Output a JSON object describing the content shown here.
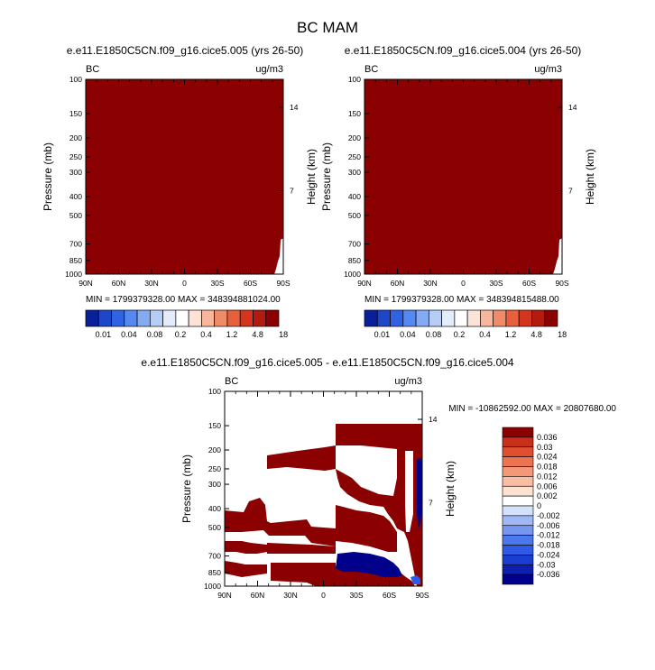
{
  "title": "BC MAM",
  "colors": {
    "fill_max": "#8b0000",
    "fill_min": "#00008b",
    "frame": "#000000",
    "background": "#ffffff"
  },
  "palette_top": [
    "#0a1f9a",
    "#1d46c8",
    "#2f63e4",
    "#5588f0",
    "#84aaf2",
    "#b6cdf6",
    "#e2ecfb",
    "#ffffff",
    "#fde3d6",
    "#f8b79c",
    "#f08b6a",
    "#e6603e",
    "#d5351c",
    "#b11b10",
    "#8b0000"
  ],
  "palette_diff": [
    "#00008b",
    "#0b1fb0",
    "#1a3fd0",
    "#2e5ae6",
    "#4c78ee",
    "#7597f1",
    "#a0b8f4",
    "#d3e2f8",
    "#ffffff",
    "#fde2d2",
    "#f9bda3",
    "#f4987a",
    "#ed7452",
    "#e04f2f",
    "#c8301a",
    "#8b0000"
  ],
  "panels": [
    {
      "title": "e.e11.E1850C5CN.f09_g16.cice5.005 (yrs 26-50)",
      "left_label": "BC",
      "right_label": "ug/m3",
      "ylabel": "Pressure (mb)",
      "y2label": "Height (km)",
      "minmax": "MIN = 1799379328.00   MAX = 348394881024.00",
      "colorbar_labels": [
        "0.01",
        "0.04",
        "0.08",
        "0.2",
        "0.4",
        "1.2",
        "4.8",
        "18"
      ]
    },
    {
      "title": "e.e11.E1850C5CN.f09_g16.cice5.004 (yrs 26-50)",
      "left_label": "BC",
      "right_label": "ug/m3",
      "ylabel": "Pressure (mb)",
      "y2label": "Height (km)",
      "minmax": "MIN = 1799379328.00   MAX = 348394815488.00",
      "colorbar_labels": [
        "0.01",
        "0.04",
        "0.08",
        "0.2",
        "0.4",
        "1.2",
        "4.8",
        "18"
      ]
    },
    {
      "title": "e.e11.E1850C5CN.f09_g16.cice5.005 - e.e11.E1850C5CN.f09_g16.cice5.004",
      "left_label": "BC",
      "right_label": "ug/m3",
      "ylabel": "Pressure (mb)",
      "y2label": "Height (km)",
      "minmax": "MIN = -10862592.00   MAX = 20807680.00",
      "colorbar_labels": [
        "0.036",
        "0.03",
        "0.024",
        "0.018",
        "0.012",
        "0.006",
        "0.002",
        "0",
        "-0.002",
        "-0.006",
        "-0.012",
        "-0.018",
        "-0.024",
        "-0.03",
        "-0.036"
      ]
    }
  ],
  "chart_data": [
    {
      "type": "heatmap",
      "title": "e.e11.E1850C5CN.f09_g16.cice5.005 (yrs 26-50)",
      "ylabel": "Pressure (mb)",
      "y2label": "Height (km)",
      "x_ticks": [
        "90N",
        "60N",
        "30N",
        "0",
        "30S",
        "60S",
        "90S"
      ],
      "x_values": [
        90,
        60,
        30,
        0,
        -30,
        -60,
        -90
      ],
      "y_ticks": [
        100,
        150,
        200,
        250,
        300,
        400,
        500,
        700,
        850,
        1000
      ],
      "y2_ticks": [
        14,
        7
      ],
      "ylim": [
        1000,
        100
      ],
      "y_scale": "log",
      "units": "ug/m3",
      "min": 1799379328.0,
      "max": 348394881024.0,
      "colorbar_levels": [
        0.01,
        0.04,
        0.08,
        0.2,
        0.4,
        1.2,
        4.8,
        18
      ],
      "field_summary": "entire domain above highest contour level (18)"
    },
    {
      "type": "heatmap",
      "title": "e.e11.E1850C5CN.f09_g16.cice5.004 (yrs 26-50)",
      "ylabel": "Pressure (mb)",
      "y2label": "Height (km)",
      "x_ticks": [
        "90N",
        "60N",
        "30N",
        "0",
        "30S",
        "60S",
        "90S"
      ],
      "x_values": [
        90,
        60,
        30,
        0,
        -30,
        -60,
        -90
      ],
      "y_ticks": [
        100,
        150,
        200,
        250,
        300,
        400,
        500,
        700,
        850,
        1000
      ],
      "y2_ticks": [
        14,
        7
      ],
      "ylim": [
        1000,
        100
      ],
      "y_scale": "log",
      "units": "ug/m3",
      "min": 1799379328.0,
      "max": 348394815488.0,
      "colorbar_levels": [
        0.01,
        0.04,
        0.08,
        0.2,
        0.4,
        1.2,
        4.8,
        18
      ],
      "field_summary": "entire domain above highest contour level (18)"
    },
    {
      "type": "heatmap",
      "title": "e.e11.E1850C5CN.f09_g16.cice5.005 - e.e11.E1850C5CN.f09_g16.cice5.004",
      "ylabel": "Pressure (mb)",
      "y2label": "Height (km)",
      "x_ticks": [
        "90N",
        "60N",
        "30N",
        "0",
        "30S",
        "60S",
        "90S"
      ],
      "x_values": [
        90,
        60,
        30,
        0,
        -30,
        -60,
        -90
      ],
      "y_ticks": [
        100,
        150,
        200,
        250,
        300,
        400,
        500,
        700,
        850,
        1000
      ],
      "y2_ticks": [
        14,
        7
      ],
      "ylim": [
        1000,
        100
      ],
      "y_scale": "log",
      "units": "ug/m3",
      "min": -10862592.0,
      "max": 20807680.0,
      "colorbar_levels": [
        0.036,
        0.03,
        0.024,
        0.018,
        0.012,
        0.006,
        0.002,
        0,
        -0.002,
        -0.006,
        -0.012,
        -0.018,
        -0.024,
        -0.03,
        -0.036
      ]
    }
  ]
}
